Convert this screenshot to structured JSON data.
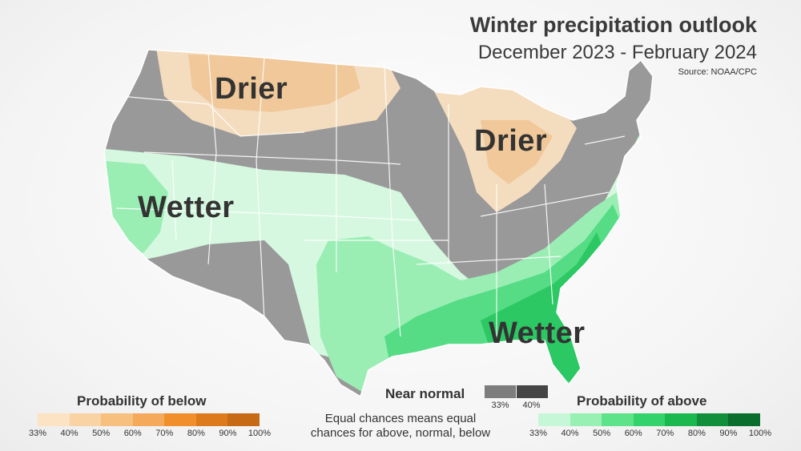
{
  "header": {
    "title": "Winter precipitation outlook",
    "subtitle": "December 2023 - February 2024",
    "source": "Source: NOAA/CPC"
  },
  "map_labels": {
    "drier_northwest": "Drier",
    "drier_great_lakes": "Drier",
    "wetter_west": "Wetter",
    "wetter_southeast": "Wetter"
  },
  "legend": {
    "below": {
      "title": "Probability of below",
      "ticks": [
        "33%",
        "40%",
        "50%",
        "60%",
        "70%",
        "80%",
        "90%",
        "100%"
      ],
      "colors": [
        "#fbe3c4",
        "#f9d3a3",
        "#f7c07f",
        "#f5a95a",
        "#f08f2c",
        "#dd7a1c",
        "#c76a15"
      ]
    },
    "near_normal": {
      "title": "Near normal",
      "ticks": [
        "33%",
        "40%"
      ],
      "colors": [
        "#7d7d7d",
        "#454545"
      ]
    },
    "above": {
      "title": "Probability of above",
      "ticks": [
        "33%",
        "40%",
        "50%",
        "60%",
        "70%",
        "80%",
        "90%",
        "100%"
      ],
      "colors": [
        "#c6f7d6",
        "#98f0b2",
        "#5fe38a",
        "#33d26b",
        "#1ab84f",
        "#118f3b",
        "#0b6e2c"
      ]
    },
    "note_line1": "Equal chances means equal",
    "note_line2": "chances for above, normal, below"
  },
  "colors": {
    "equal_chances": "#999999",
    "state_border": "#ffffff",
    "drier_light": "#f4ddbf",
    "drier_mid": "#f0c89a",
    "wetter_light": "#d6f8e0",
    "wetter_mid": "#9aeeb4",
    "wetter_strong": "#55dc85",
    "wetter_deep": "#2cc863"
  }
}
